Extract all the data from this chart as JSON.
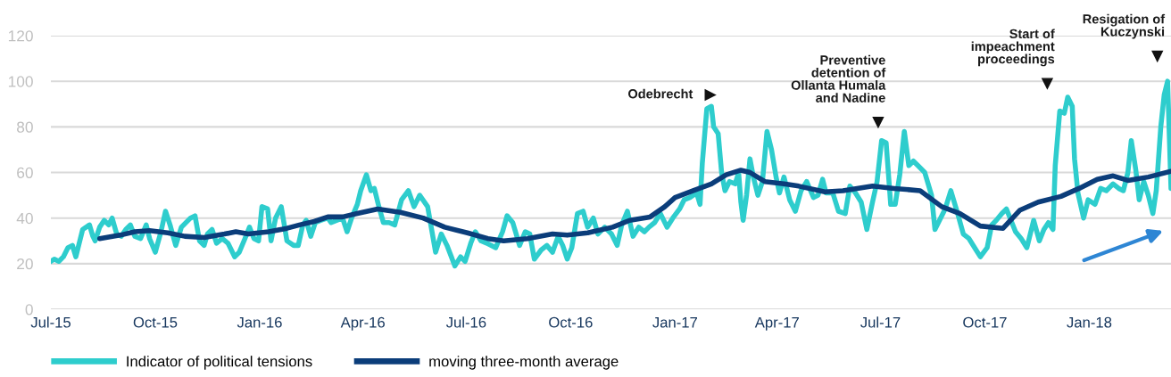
{
  "chart_data": {
    "type": "line",
    "xlim": [
      "2015-07-01",
      "2018-03-14"
    ],
    "xticks": [
      {
        "value": "2015-07-01",
        "label": "Jul-15"
      },
      {
        "value": "2015-10-01",
        "label": "Oct-15"
      },
      {
        "value": "2016-01-01",
        "label": "Jan-16"
      },
      {
        "value": "2016-04-01",
        "label": "Apr-16"
      },
      {
        "value": "2016-07-01",
        "label": "Jul-16"
      },
      {
        "value": "2016-10-01",
        "label": "Oct-16"
      },
      {
        "value": "2017-01-01",
        "label": "Jan-17"
      },
      {
        "value": "2017-04-01",
        "label": "Apr-17"
      },
      {
        "value": "2017-07-01",
        "label": "Jul-17"
      },
      {
        "value": "2017-10-01",
        "label": "Oct-17"
      },
      {
        "value": "2018-01-01",
        "label": "Jan-18"
      }
    ],
    "ylim": [
      0,
      120
    ],
    "yticks": [
      0,
      20,
      40,
      60,
      80,
      100,
      120
    ],
    "grid": "y",
    "legend": "bottom",
    "marker": "none",
    "line_style": "solid",
    "series": [
      {
        "name": "Indicator of political tensions",
        "color": "#2ecdcd",
        "x": [
          "2015-07-01",
          "2015-07-04",
          "2015-07-08",
          "2015-07-12",
          "2015-07-16",
          "2015-07-20",
          "2015-07-23",
          "2015-07-25",
          "2015-07-29",
          "2015-08-04",
          "2015-08-07",
          "2015-08-09",
          "2015-08-13",
          "2015-08-17",
          "2015-08-21",
          "2015-08-24",
          "2015-08-28",
          "2015-09-01",
          "2015-09-05",
          "2015-09-09",
          "2015-09-13",
          "2015-09-18",
          "2015-09-23",
          "2015-09-26",
          "2015-10-01",
          "2015-10-06",
          "2015-10-10",
          "2015-10-14",
          "2015-10-19",
          "2015-10-24",
          "2015-11-01",
          "2015-11-05",
          "2015-11-09",
          "2015-11-13",
          "2015-11-16",
          "2015-11-20",
          "2015-11-24",
          "2015-11-29",
          "2015-12-04",
          "2015-12-10",
          "2015-12-14",
          "2015-12-19",
          "2015-12-23",
          "2015-12-27",
          "2015-12-31",
          "2016-01-03",
          "2016-01-08",
          "2016-01-11",
          "2016-01-15",
          "2016-01-20",
          "2016-01-25",
          "2016-01-31",
          "2016-02-04",
          "2016-02-08",
          "2016-02-11",
          "2016-02-15",
          "2016-02-19",
          "2016-02-24",
          "2016-03-01",
          "2016-03-04",
          "2016-03-09",
          "2016-03-14",
          "2016-03-18",
          "2016-03-22",
          "2016-03-27",
          "2016-03-30",
          "2016-04-04",
          "2016-04-08",
          "2016-04-11",
          "2016-04-15",
          "2016-04-19",
          "2016-04-24",
          "2016-04-29",
          "2016-05-05",
          "2016-05-11",
          "2016-05-16",
          "2016-05-21",
          "2016-05-28",
          "2016-06-04",
          "2016-06-09",
          "2016-06-14",
          "2016-06-21",
          "2016-06-26",
          "2016-06-30",
          "2016-07-05",
          "2016-07-09",
          "2016-07-14",
          "2016-07-19",
          "2016-07-27",
          "2016-08-02",
          "2016-08-06",
          "2016-08-11",
          "2016-08-17",
          "2016-08-22",
          "2016-08-26",
          "2016-08-30",
          "2016-09-05",
          "2016-09-10",
          "2016-09-15",
          "2016-09-20",
          "2016-09-24",
          "2016-09-28",
          "2016-10-02",
          "2016-10-07",
          "2016-10-12",
          "2016-10-16",
          "2016-10-21",
          "2016-10-25",
          "2016-10-31",
          "2016-11-06",
          "2016-11-11",
          "2016-11-15",
          "2016-11-20",
          "2016-11-25",
          "2016-11-30",
          "2016-12-05",
          "2016-12-09",
          "2016-12-14",
          "2016-12-19",
          "2016-12-25",
          "2016-12-30",
          "2017-01-05",
          "2017-01-09",
          "2017-01-14",
          "2017-01-20",
          "2017-01-23",
          "2017-01-25",
          "2017-01-29",
          "2017-02-02",
          "2017-02-04",
          "2017-02-08",
          "2017-02-11",
          "2017-02-14",
          "2017-02-18",
          "2017-02-23",
          "2017-02-26",
          "2017-02-28",
          "2017-03-02",
          "2017-03-05",
          "2017-03-08",
          "2017-03-11",
          "2017-03-15",
          "2017-03-19",
          "2017-03-23",
          "2017-03-27",
          "2017-03-31",
          "2017-04-03",
          "2017-04-07",
          "2017-04-12",
          "2017-04-17",
          "2017-04-22",
          "2017-04-27",
          "2017-05-03",
          "2017-05-07",
          "2017-05-11",
          "2017-05-14",
          "2017-05-20",
          "2017-05-25",
          "2017-05-31",
          "2017-06-04",
          "2017-06-09",
          "2017-06-14",
          "2017-06-19",
          "2017-06-24",
          "2017-06-28",
          "2017-07-02",
          "2017-07-06",
          "2017-07-10",
          "2017-07-14",
          "2017-07-18",
          "2017-07-22",
          "2017-07-26",
          "2017-07-30",
          "2017-08-03",
          "2017-08-09",
          "2017-08-15",
          "2017-08-18",
          "2017-08-22",
          "2017-08-27",
          "2017-09-01",
          "2017-09-07",
          "2017-09-12",
          "2017-09-17",
          "2017-09-22",
          "2017-09-27",
          "2017-10-03",
          "2017-10-07",
          "2017-10-11",
          "2017-10-16",
          "2017-10-20",
          "2017-10-24",
          "2017-10-28",
          "2017-11-02",
          "2017-11-07",
          "2017-11-13",
          "2017-11-18",
          "2017-11-22",
          "2017-11-26",
          "2017-11-30",
          "2017-12-02",
          "2017-12-06",
          "2017-12-10",
          "2017-12-13",
          "2017-12-17",
          "2017-12-19",
          "2017-12-22",
          "2017-12-27",
          "2017-12-31",
          "2018-01-06",
          "2018-01-11",
          "2018-01-16",
          "2018-01-22",
          "2018-01-27",
          "2018-01-31",
          "2018-02-04",
          "2018-02-07",
          "2018-02-11",
          "2018-02-14",
          "2018-02-18",
          "2018-02-22",
          "2018-02-26",
          "2018-03-01",
          "2018-03-05",
          "2018-03-08",
          "2018-03-11",
          "2018-03-14"
        ],
        "values": [
          21,
          22,
          21,
          23,
          27,
          28,
          23,
          27,
          35,
          37,
          32,
          30,
          36,
          39,
          37,
          40,
          33,
          32,
          35,
          37,
          32,
          31,
          37,
          31,
          25,
          34,
          43,
          37,
          28,
          36,
          40,
          41,
          30,
          28,
          33,
          35,
          29,
          31,
          29,
          23,
          25,
          31,
          36,
          31,
          30,
          45,
          44,
          30,
          40,
          45,
          30,
          28,
          28,
          37,
          39,
          32,
          38,
          39,
          40,
          38,
          39,
          40,
          34,
          40,
          46,
          52,
          59,
          52,
          53,
          45,
          38,
          38,
          37,
          48,
          52,
          45,
          50,
          45,
          25,
          33,
          28,
          19,
          23,
          21,
          29,
          34,
          30,
          29,
          27,
          34,
          41,
          38,
          28,
          34,
          33,
          22,
          26,
          28,
          25,
          32,
          28,
          22,
          27,
          42,
          43,
          36,
          40,
          33,
          36,
          33,
          28,
          37,
          43,
          32,
          36,
          34,
          36,
          38,
          42,
          36,
          40,
          44,
          48,
          49,
          51,
          46,
          64,
          88,
          89,
          80,
          77,
          60,
          52,
          56,
          55,
          60,
          47,
          39,
          50,
          66,
          58,
          50,
          56,
          78,
          70,
          58,
          51,
          58,
          48,
          43,
          52,
          56,
          49,
          50,
          57,
          51,
          51,
          43,
          42,
          54,
          51,
          47,
          35,
          47,
          56,
          74,
          73,
          46,
          46,
          59,
          78,
          63,
          65,
          63,
          60,
          50,
          35,
          39,
          44,
          52,
          42,
          33,
          31,
          27,
          23,
          27,
          37,
          39,
          42,
          44,
          39,
          34,
          31,
          27,
          39,
          30,
          35,
          38,
          35,
          63,
          87,
          86,
          93,
          89,
          66,
          51,
          40,
          48,
          46,
          53,
          52,
          55,
          53,
          52,
          60,
          74,
          61,
          48,
          56,
          50,
          42,
          52,
          80,
          94,
          100,
          53
        ]
      },
      {
        "name": "moving three-month average",
        "color": "#0b3d7a",
        "x": [
          "2015-08-13",
          "2015-08-31",
          "2015-09-13",
          "2015-09-26",
          "2015-10-12",
          "2015-10-27",
          "2015-11-13",
          "2015-12-01",
          "2015-12-11",
          "2015-12-22",
          "2016-01-09",
          "2016-01-25",
          "2016-02-05",
          "2016-02-18",
          "2016-03-01",
          "2016-03-14",
          "2016-03-27",
          "2016-04-14",
          "2016-05-04",
          "2016-05-24",
          "2016-06-12",
          "2016-07-02",
          "2016-07-20",
          "2016-08-03",
          "2016-08-24",
          "2016-09-15",
          "2016-09-28",
          "2016-10-16",
          "2016-11-07",
          "2016-11-22",
          "2016-12-10",
          "2016-12-23",
          "2017-01-01",
          "2017-01-17",
          "2017-02-02",
          "2017-02-15",
          "2017-02-28",
          "2017-03-08",
          "2017-03-21",
          "2017-04-07",
          "2017-04-20",
          "2017-05-13",
          "2017-05-29",
          "2017-06-24",
          "2017-07-13",
          "2017-08-05",
          "2017-08-24",
          "2017-09-09",
          "2017-09-27",
          "2017-10-17",
          "2017-11-01",
          "2017-11-17",
          "2017-12-07",
          "2017-12-23",
          "2018-01-08",
          "2018-01-22",
          "2018-02-04",
          "2018-02-22",
          "2018-03-14"
        ],
        "values": [
          31,
          32.5,
          34,
          34.5,
          33.5,
          32,
          31.5,
          33,
          34,
          33,
          34,
          35.5,
          37,
          38.5,
          40.5,
          40.5,
          42,
          44,
          42.5,
          40,
          36,
          33.5,
          31,
          30,
          31,
          33,
          32.5,
          33.5,
          36,
          39,
          40.5,
          45,
          49,
          52,
          55,
          59,
          61,
          60,
          56,
          55,
          54,
          51.5,
          52,
          54,
          53,
          52,
          45,
          42,
          36.5,
          35.5,
          43.5,
          47,
          49.5,
          53,
          57,
          58.5,
          56.5,
          58,
          60.5
        ]
      }
    ],
    "annotations": [
      {
        "text": "Odebrecht",
        "x": "2017-02-01",
        "y": 94
      },
      {
        "text": "Preventive\ndetention of\nOllanta Humala\nand Nadine",
        "x": "2017-06-29",
        "y": 82
      },
      {
        "text": "Start of\nimpeachment\nproceedings",
        "x": "2017-11-25",
        "y": 99
      },
      {
        "text": "Resigation of\nKuczynski",
        "x": "2018-03-02",
        "y": 111
      }
    ]
  }
}
